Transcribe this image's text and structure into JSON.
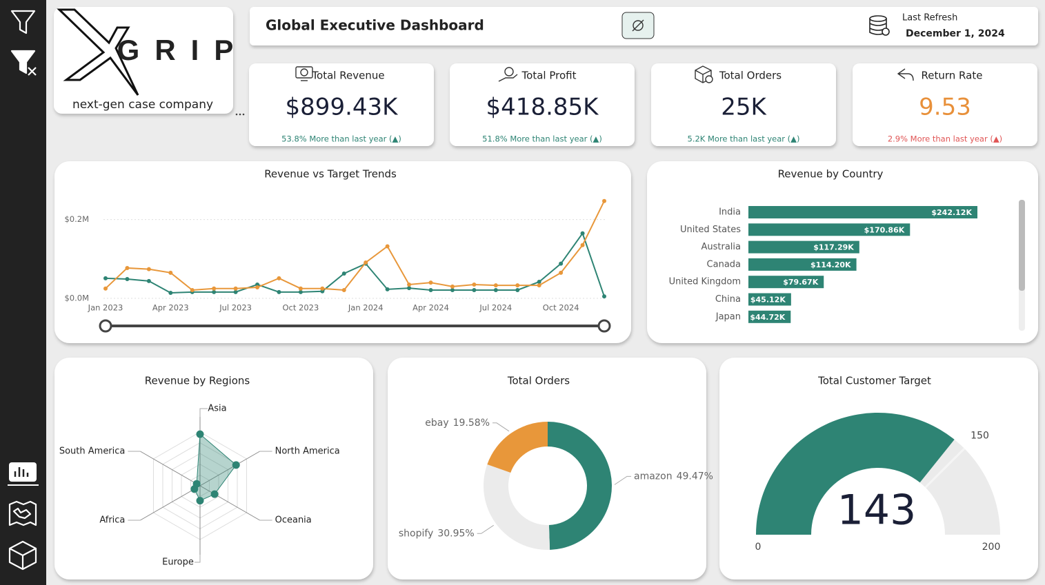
{
  "header": {
    "title": "Global Executive Dashboard",
    "refresh_label": "Last Refresh",
    "refresh_date": "December 1, 2024"
  },
  "logo": {
    "brand": "GRIP",
    "tagline": "next-gen case company"
  },
  "kpis": [
    {
      "label": "Total Revenue",
      "value": "$899.43K",
      "change": "53.8% More than last year (▲)",
      "value_color": "#1a1f36",
      "change_color": "#2e8474"
    },
    {
      "label": "Total Profit",
      "value": "$418.85K",
      "change": "51.8% More than last year (▲)",
      "value_color": "#1a1f36",
      "change_color": "#2e8474"
    },
    {
      "label": "Total Orders",
      "value": "25K",
      "change": "5.2K More than last year (▲)",
      "value_color": "#1a1f36",
      "change_color": "#2e8474"
    },
    {
      "label": "Return Rate",
      "value": "9.53",
      "change": "2.9% More than last year (▲)",
      "value_color": "#e8903a",
      "change_color": "#e05555"
    }
  ],
  "chart_data": [
    {
      "type": "line",
      "title": "Revenue vs Target Trends",
      "categories": [
        "Jan 2023",
        null,
        null,
        "Apr 2023",
        null,
        null,
        "Jul 2023",
        null,
        null,
        "Oct 2023",
        null,
        null,
        "Jan 2024",
        null,
        null,
        "Apr 2024",
        null,
        null,
        "Jul 2024",
        null,
        null,
        "Oct 2024",
        null,
        null
      ],
      "series": [
        {
          "color": "#2e8474",
          "values": [
            0.051,
            0.049,
            0.044,
            0.014,
            0.016,
            0.016,
            0.016,
            0.035,
            0.016,
            0.016,
            0.018,
            0.063,
            0.088,
            0.023,
            0.026,
            0.021,
            0.021,
            0.021,
            0.021,
            0.021,
            0.042,
            0.088,
            0.165,
            0.005
          ]
        },
        {
          "color": "#e8973a",
          "values": [
            0.025,
            0.077,
            0.074,
            0.065,
            0.021,
            0.025,
            0.025,
            0.028,
            0.051,
            0.025,
            0.025,
            0.021,
            0.091,
            0.132,
            0.035,
            0.04,
            0.03,
            0.035,
            0.033,
            0.033,
            0.033,
            0.065,
            0.135,
            0.247
          ]
        }
      ],
      "ylim": [
        0,
        0.25
      ],
      "yticks": [
        {
          "value": 0,
          "label": "$0.0M"
        },
        {
          "value": 0.2,
          "label": "$0.2M"
        }
      ],
      "grid": true
    },
    {
      "type": "bar",
      "orientation": "horizontal",
      "title": "Revenue by Country",
      "categories": [
        "India",
        "United States",
        "Australia",
        "Canada",
        "United Kingdom",
        "China",
        "Japan"
      ],
      "values": [
        242.12,
        170.86,
        117.29,
        114.2,
        79.67,
        45.12,
        44.72
      ],
      "value_labels": [
        "$242.12K",
        "$170.86K",
        "$117.29K",
        "$114.20K",
        "$79.67K",
        "$45.12K",
        "$44.72K"
      ],
      "color": "#2e8474"
    },
    {
      "type": "radar",
      "title": "Revenue by Regions",
      "categories": [
        "Asia",
        "North America",
        "Oceania",
        "Europe",
        "Africa",
        "South America"
      ],
      "values": [
        360,
        290,
        117,
        104,
        45,
        27
      ],
      "color": "#2e8474"
    },
    {
      "type": "donut",
      "title": "Total Orders",
      "categories": [
        "amazon",
        "shopify",
        "ebay"
      ],
      "values": [
        49.47,
        30.95,
        19.58
      ],
      "value_labels": [
        "49.47%",
        "30.95%",
        "19.58%"
      ],
      "colors": [
        "#2e8474",
        "#ebebeb",
        "#e8973a"
      ]
    },
    {
      "type": "gauge",
      "title": "Total Customer Target",
      "value": 143,
      "ylim": [
        0,
        200
      ],
      "target": 150,
      "color": "#2e8474"
    }
  ]
}
